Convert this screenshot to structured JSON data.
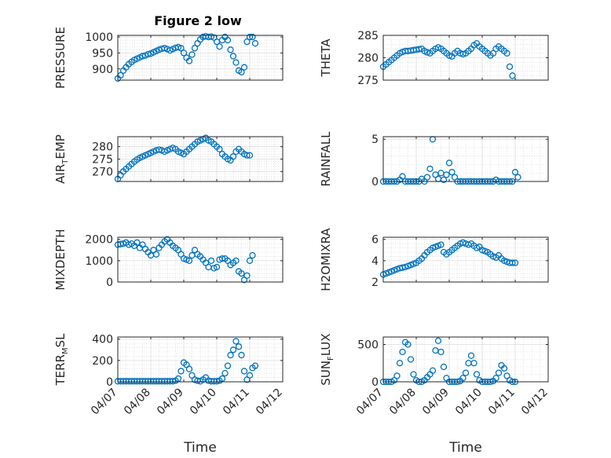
{
  "figure": {
    "title": "Figure 2 low",
    "marker_color": "#0072BD"
  },
  "chart_data": [
    {
      "type": "scatter",
      "id": "pressure",
      "title": "Figure 2 low",
      "ylabel": "PRESSURE",
      "ylabel_parts": [
        {
          "t": "PRESSURE"
        }
      ],
      "xlim": [
        "04/07",
        "04/12"
      ],
      "x_ticks": [
        "04/07",
        "04/08",
        "04/09",
        "04/10",
        "04/11",
        "04/12"
      ],
      "x_tick_labels_shown": false,
      "ylim": [
        865,
        1005
      ],
      "y_ticks": [
        900,
        950,
        1000
      ],
      "grid": true,
      "x": [
        "04/07 00:00",
        "04/07 02:00",
        "04/07 04:00",
        "04/07 06:00",
        "04/07 08:00",
        "04/07 10:00",
        "04/07 12:00",
        "04/07 14:00",
        "04/07 16:00",
        "04/07 18:00",
        "04/07 20:00",
        "04/07 22:00",
        "04/08 00:00",
        "04/08 02:00",
        "04/08 04:00",
        "04/08 06:00",
        "04/08 08:00",
        "04/08 10:00",
        "04/08 12:00",
        "04/08 14:00",
        "04/08 16:00",
        "04/08 18:00",
        "04/08 20:00",
        "04/08 22:00",
        "04/09 00:00",
        "04/09 02:00",
        "04/09 04:00",
        "04/09 06:00",
        "04/09 08:00",
        "04/09 10:00",
        "04/09 12:00",
        "04/09 14:00",
        "04/09 16:00",
        "04/09 18:00",
        "04/09 20:00",
        "04/09 22:00",
        "04/10 00:00",
        "04/10 02:00",
        "04/10 04:00",
        "04/10 06:00",
        "04/10 08:00",
        "04/10 10:00",
        "04/10 12:00",
        "04/10 14:00",
        "04/10 16:00",
        "04/10 18:00",
        "04/10 20:00",
        "04/10 22:00",
        "04/11 00:00",
        "04/11 02:00",
        "04/11 04:00"
      ],
      "y": [
        870,
        880,
        895,
        905,
        915,
        922,
        928,
        932,
        936,
        940,
        942,
        946,
        948,
        952,
        956,
        960,
        963,
        965,
        962,
        958,
        962,
        966,
        968,
        965,
        950,
        935,
        925,
        945,
        965,
        980,
        992,
        1000,
        1002,
        1000,
        1001,
        998,
        985,
        970,
        990,
        1000,
        990,
        960,
        940,
        920,
        895,
        890,
        905,
        985,
        1000,
        1000,
        980
      ]
    },
    {
      "type": "scatter",
      "id": "theta",
      "ylabel": "THETA",
      "ylabel_parts": [
        {
          "t": "THETA"
        }
      ],
      "xlim": [
        "04/07",
        "04/12"
      ],
      "x_ticks": [
        "04/07",
        "04/08",
        "04/09",
        "04/10",
        "04/11",
        "04/12"
      ],
      "x_tick_labels_shown": false,
      "ylim": [
        275,
        285
      ],
      "y_ticks": [
        275,
        280,
        285
      ],
      "grid": true,
      "x": [
        "04/07 00:00",
        "04/07 02:00",
        "04/07 04:00",
        "04/07 06:00",
        "04/07 08:00",
        "04/07 10:00",
        "04/07 12:00",
        "04/07 14:00",
        "04/07 16:00",
        "04/07 18:00",
        "04/07 20:00",
        "04/07 22:00",
        "04/08 00:00",
        "04/08 02:00",
        "04/08 04:00",
        "04/08 06:00",
        "04/08 08:00",
        "04/08 10:00",
        "04/08 12:00",
        "04/08 14:00",
        "04/08 16:00",
        "04/08 18:00",
        "04/08 20:00",
        "04/08 22:00",
        "04/09 00:00",
        "04/09 02:00",
        "04/09 04:00",
        "04/09 06:00",
        "04/09 08:00",
        "04/09 10:00",
        "04/09 12:00",
        "04/09 14:00",
        "04/09 16:00",
        "04/09 18:00",
        "04/09 20:00",
        "04/09 22:00",
        "04/10 00:00",
        "04/10 02:00",
        "04/10 04:00",
        "04/10 06:00",
        "04/10 08:00",
        "04/10 10:00",
        "04/10 12:00",
        "04/10 14:00",
        "04/10 16:00",
        "04/10 18:00",
        "04/10 20:00",
        "04/10 22:00"
      ],
      "y": [
        278,
        278.5,
        279,
        279.5,
        280,
        280.5,
        281,
        281.3,
        281.5,
        281.5,
        281.6,
        281.7,
        281.8,
        281.9,
        282,
        281.5,
        281.2,
        281,
        281.5,
        282,
        282.3,
        282,
        281.5,
        281,
        280.5,
        280.3,
        281,
        281.5,
        281,
        280.8,
        281,
        281.5,
        282,
        282.8,
        283.2,
        282.5,
        282,
        281.5,
        281,
        280.5,
        281,
        282,
        282.5,
        282,
        281.5,
        281,
        278,
        276
      ]
    },
    {
      "type": "scatter",
      "id": "air_temp",
      "ylabel": "AIR_TEMP",
      "ylabel_parts": [
        {
          "t": "AIR"
        },
        {
          "t": "T",
          "sub": true
        },
        {
          "t": "EMP"
        }
      ],
      "xlim": [
        "04/07",
        "04/12"
      ],
      "x_ticks": [
        "04/07",
        "04/08",
        "04/09",
        "04/10",
        "04/11",
        "04/12"
      ],
      "x_tick_labels_shown": false,
      "ylim": [
        266,
        284
      ],
      "y_ticks": [
        270,
        275,
        280
      ],
      "grid": true,
      "x": [
        "04/07 00:00",
        "04/07 02:00",
        "04/07 04:00",
        "04/07 06:00",
        "04/07 08:00",
        "04/07 10:00",
        "04/07 12:00",
        "04/07 14:00",
        "04/07 16:00",
        "04/07 18:00",
        "04/07 20:00",
        "04/07 22:00",
        "04/08 00:00",
        "04/08 02:00",
        "04/08 04:00",
        "04/08 06:00",
        "04/08 08:00",
        "04/08 10:00",
        "04/08 12:00",
        "04/08 14:00",
        "04/08 16:00",
        "04/08 18:00",
        "04/08 20:00",
        "04/08 22:00",
        "04/09 00:00",
        "04/09 02:00",
        "04/09 04:00",
        "04/09 06:00",
        "04/09 08:00",
        "04/09 10:00",
        "04/09 12:00",
        "04/09 14:00",
        "04/09 16:00",
        "04/09 18:00",
        "04/09 20:00",
        "04/09 22:00",
        "04/10 00:00",
        "04/10 02:00",
        "04/10 04:00",
        "04/10 06:00",
        "04/10 08:00",
        "04/10 10:00",
        "04/10 12:00",
        "04/10 14:00",
        "04/10 16:00",
        "04/10 18:00",
        "04/10 20:00",
        "04/10 22:00",
        "04/11 00:00"
      ],
      "y": [
        267,
        268.5,
        270,
        271,
        272,
        273,
        274,
        274.8,
        275.5,
        276,
        276.5,
        277,
        277.5,
        278,
        278.5,
        278.8,
        278.5,
        278,
        278.5,
        279,
        279.5,
        279,
        278,
        277.5,
        277,
        278,
        279,
        280,
        281,
        282,
        282.5,
        283,
        283.5,
        282.5,
        282,
        281,
        280,
        279,
        277,
        276,
        275,
        274.5,
        276,
        278,
        279,
        278,
        277,
        276.5,
        276.5
      ]
    },
    {
      "type": "scatter",
      "id": "rainfall",
      "ylabel": "RAINFALL",
      "ylabel_parts": [
        {
          "t": "RAINFALL"
        }
      ],
      "xlim": [
        "04/07",
        "04/12"
      ],
      "x_ticks": [
        "04/07",
        "04/08",
        "04/09",
        "04/10",
        "04/11",
        "04/12"
      ],
      "x_tick_labels_shown": false,
      "ylim": [
        0,
        5.3
      ],
      "y_ticks": [
        0,
        5
      ],
      "grid": true,
      "x": [
        "04/07 00:00",
        "04/07 02:00",
        "04/07 04:00",
        "04/07 06:00",
        "04/07 08:00",
        "04/07 10:00",
        "04/07 12:00",
        "04/07 14:00",
        "04/07 16:00",
        "04/07 18:00",
        "04/07 20:00",
        "04/07 22:00",
        "04/08 00:00",
        "04/08 02:00",
        "04/08 04:00",
        "04/08 06:00",
        "04/08 08:00",
        "04/08 10:00",
        "04/08 12:00",
        "04/08 14:00",
        "04/08 16:00",
        "04/08 18:00",
        "04/08 20:00",
        "04/08 22:00",
        "04/09 00:00",
        "04/09 02:00",
        "04/09 04:00",
        "04/09 06:00",
        "04/09 08:00",
        "04/09 10:00",
        "04/09 12:00",
        "04/09 14:00",
        "04/09 16:00",
        "04/09 18:00",
        "04/09 20:00",
        "04/09 22:00",
        "04/10 00:00",
        "04/10 02:00",
        "04/10 04:00",
        "04/10 06:00",
        "04/10 08:00",
        "04/10 10:00",
        "04/10 12:00",
        "04/10 14:00",
        "04/10 16:00",
        "04/10 18:00",
        "04/10 20:00",
        "04/10 22:00",
        "04/11 00:00",
        "04/11 02:00"
      ],
      "y": [
        0,
        0,
        0,
        0,
        0,
        0,
        0.2,
        0.6,
        0,
        0,
        0,
        0,
        0,
        0,
        0.3,
        0,
        0.5,
        1.5,
        5,
        0.8,
        0.3,
        1.0,
        0.2,
        0.8,
        2.2,
        1.1,
        0.5,
        0,
        0,
        0,
        0,
        0,
        0,
        0,
        0,
        0,
        0,
        0,
        0,
        0,
        0,
        0.2,
        0,
        0,
        0,
        0,
        0,
        0,
        1.1,
        0.5
      ]
    },
    {
      "type": "scatter",
      "id": "mixdepth",
      "ylabel": "MIXDEPTH",
      "ylabel_parts": [
        {
          "t": "MIXDEPTH"
        }
      ],
      "xlim": [
        "04/07",
        "04/12"
      ],
      "x_ticks": [
        "04/07",
        "04/08",
        "04/09",
        "04/10",
        "04/11",
        "04/12"
      ],
      "x_tick_labels_shown": false,
      "ylim": [
        0,
        2100
      ],
      "y_ticks": [
        0,
        1000,
        2000
      ],
      "grid": true,
      "x": [
        "04/07 00:00",
        "04/07 02:00",
        "04/07 04:00",
        "04/07 06:00",
        "04/07 08:00",
        "04/07 10:00",
        "04/07 12:00",
        "04/07 14:00",
        "04/07 16:00",
        "04/07 18:00",
        "04/07 20:00",
        "04/07 22:00",
        "04/08 00:00",
        "04/08 02:00",
        "04/08 04:00",
        "04/08 06:00",
        "04/08 08:00",
        "04/08 10:00",
        "04/08 12:00",
        "04/08 14:00",
        "04/08 16:00",
        "04/08 18:00",
        "04/08 20:00",
        "04/08 22:00",
        "04/09 00:00",
        "04/09 02:00",
        "04/09 04:00",
        "04/09 06:00",
        "04/09 08:00",
        "04/09 10:00",
        "04/09 12:00",
        "04/09 14:00",
        "04/09 16:00",
        "04/09 18:00",
        "04/09 20:00",
        "04/09 22:00",
        "04/10 00:00",
        "04/10 02:00",
        "04/10 04:00",
        "04/10 06:00",
        "04/10 08:00",
        "04/10 10:00",
        "04/10 12:00",
        "04/10 14:00",
        "04/10 16:00",
        "04/10 18:00",
        "04/10 20:00",
        "04/10 22:00",
        "04/11 00:00",
        "04/11 02:00"
      ],
      "y": [
        1750,
        1780,
        1800,
        1850,
        1750,
        1800,
        1700,
        1850,
        1600,
        1750,
        1550,
        1400,
        1250,
        1500,
        1300,
        1600,
        1750,
        1900,
        2000,
        1850,
        1700,
        1600,
        1500,
        1300,
        1100,
        1050,
        1000,
        1250,
        1500,
        1300,
        1200,
        1050,
        900,
        700,
        1000,
        650,
        700,
        1050,
        1100,
        1100,
        1000,
        800,
        900,
        1000,
        500,
        400,
        100,
        300,
        1000,
        1250
      ]
    },
    {
      "type": "scatter",
      "id": "h2omixra",
      "ylabel": "H2OMIXRA",
      "ylabel_parts": [
        {
          "t": "H2OMIXRA"
        }
      ],
      "xlim": [
        "04/07",
        "04/12"
      ],
      "x_ticks": [
        "04/07",
        "04/08",
        "04/09",
        "04/10",
        "04/11",
        "04/12"
      ],
      "x_tick_labels_shown": false,
      "ylim": [
        2,
        6.2
      ],
      "y_ticks": [
        2,
        4,
        6
      ],
      "grid": true,
      "x": [
        "04/07 00:00",
        "04/07 02:00",
        "04/07 04:00",
        "04/07 06:00",
        "04/07 08:00",
        "04/07 10:00",
        "04/07 12:00",
        "04/07 14:00",
        "04/07 16:00",
        "04/07 18:00",
        "04/07 20:00",
        "04/07 22:00",
        "04/08 00:00",
        "04/08 02:00",
        "04/08 04:00",
        "04/08 06:00",
        "04/08 08:00",
        "04/08 10:00",
        "04/08 12:00",
        "04/08 14:00",
        "04/08 16:00",
        "04/08 18:00",
        "04/08 20:00",
        "04/08 22:00",
        "04/09 00:00",
        "04/09 02:00",
        "04/09 04:00",
        "04/09 06:00",
        "04/09 08:00",
        "04/09 10:00",
        "04/09 12:00",
        "04/09 14:00",
        "04/09 16:00",
        "04/09 18:00",
        "04/09 20:00",
        "04/09 22:00",
        "04/10 00:00",
        "04/10 02:00",
        "04/10 04:00",
        "04/10 06:00",
        "04/10 08:00",
        "04/10 10:00",
        "04/10 12:00",
        "04/10 14:00",
        "04/10 16:00",
        "04/10 18:00",
        "04/10 20:00",
        "04/10 22:00",
        "04/11 00:00"
      ],
      "y": [
        2.7,
        2.8,
        2.9,
        3.0,
        3.1,
        3.2,
        3.3,
        3.35,
        3.4,
        3.5,
        3.6,
        3.7,
        3.8,
        4.0,
        4.2,
        4.5,
        4.8,
        5.0,
        5.2,
        5.3,
        5.4,
        5.5,
        4.8,
        4.6,
        4.8,
        5.0,
        5.2,
        5.4,
        5.6,
        5.7,
        5.6,
        5.5,
        5.6,
        5.4,
        5.2,
        5.3,
        5.0,
        4.9,
        4.8,
        4.6,
        4.4,
        4.3,
        4.5,
        4.2,
        4.0,
        3.9,
        3.8,
        3.8,
        3.8
      ]
    },
    {
      "type": "scatter",
      "id": "terr_msl",
      "ylabel": "TERR_MSL",
      "ylabel_parts": [
        {
          "t": "TERR"
        },
        {
          "t": "M",
          "sub": true
        },
        {
          "t": "SL"
        }
      ],
      "xlim": [
        "04/07",
        "04/12"
      ],
      "x_ticks": [
        "04/07",
        "04/08",
        "04/09",
        "04/10",
        "04/11",
        "04/12"
      ],
      "x_tick_labels_shown": true,
      "ylim": [
        0,
        420
      ],
      "y_ticks": [
        0,
        200,
        400
      ],
      "grid": true,
      "xlabel": "Time",
      "x": [
        "04/07 00:00",
        "04/07 02:00",
        "04/07 04:00",
        "04/07 06:00",
        "04/07 08:00",
        "04/07 10:00",
        "04/07 12:00",
        "04/07 14:00",
        "04/07 16:00",
        "04/07 18:00",
        "04/07 20:00",
        "04/07 22:00",
        "04/08 00:00",
        "04/08 02:00",
        "04/08 04:00",
        "04/08 06:00",
        "04/08 08:00",
        "04/08 10:00",
        "04/08 12:00",
        "04/08 14:00",
        "04/08 16:00",
        "04/08 18:00",
        "04/08 20:00",
        "04/08 22:00",
        "04/09 00:00",
        "04/09 02:00",
        "04/09 04:00",
        "04/09 06:00",
        "04/09 08:00",
        "04/09 10:00",
        "04/09 12:00",
        "04/09 14:00",
        "04/09 16:00",
        "04/09 18:00",
        "04/09 20:00",
        "04/09 22:00",
        "04/10 00:00",
        "04/10 02:00",
        "04/10 04:00",
        "04/10 06:00",
        "04/10 08:00",
        "04/10 10:00",
        "04/10 12:00",
        "04/10 14:00",
        "04/10 16:00",
        "04/10 18:00",
        "04/10 20:00",
        "04/10 22:00",
        "04/11 00:00",
        "04/11 02:00",
        "04/11 04:00"
      ],
      "y": [
        5,
        5,
        5,
        5,
        5,
        5,
        5,
        5,
        5,
        5,
        5,
        5,
        5,
        5,
        5,
        5,
        5,
        5,
        5,
        5,
        5,
        10,
        30,
        100,
        180,
        160,
        120,
        60,
        20,
        10,
        5,
        20,
        40,
        10,
        5,
        5,
        5,
        10,
        30,
        80,
        150,
        250,
        300,
        380,
        330,
        250,
        100,
        20,
        60,
        130,
        150
      ]
    },
    {
      "type": "scatter",
      "id": "sun_flux",
      "ylabel": "SUN_FLUX",
      "ylabel_parts": [
        {
          "t": "SUN"
        },
        {
          "t": "F",
          "sub": true
        },
        {
          "t": "LUX"
        }
      ],
      "xlim": [
        "04/07",
        "04/12"
      ],
      "x_ticks": [
        "04/07",
        "04/08",
        "04/09",
        "04/10",
        "04/11",
        "04/12"
      ],
      "x_tick_labels_shown": true,
      "ylim": [
        0,
        600
      ],
      "y_ticks": [
        0,
        500
      ],
      "grid": true,
      "xlabel": "Time",
      "x": [
        "04/07 00:00",
        "04/07 02:00",
        "04/07 04:00",
        "04/07 06:00",
        "04/07 08:00",
        "04/07 10:00",
        "04/07 12:00",
        "04/07 14:00",
        "04/07 16:00",
        "04/07 18:00",
        "04/07 20:00",
        "04/07 22:00",
        "04/08 00:00",
        "04/08 02:00",
        "04/08 04:00",
        "04/08 06:00",
        "04/08 08:00",
        "04/08 10:00",
        "04/08 12:00",
        "04/08 14:00",
        "04/08 16:00",
        "04/08 18:00",
        "04/08 20:00",
        "04/08 22:00",
        "04/09 00:00",
        "04/09 02:00",
        "04/09 04:00",
        "04/09 06:00",
        "04/09 08:00",
        "04/09 10:00",
        "04/09 12:00",
        "04/09 14:00",
        "04/09 16:00",
        "04/09 18:00",
        "04/09 20:00",
        "04/09 22:00",
        "04/10 00:00",
        "04/10 02:00",
        "04/10 04:00",
        "04/10 06:00",
        "04/10 08:00",
        "04/10 10:00",
        "04/10 12:00",
        "04/10 14:00",
        "04/10 16:00",
        "04/10 18:00",
        "04/10 20:00",
        "04/10 22:00",
        "04/11 00:00"
      ],
      "y": [
        0,
        0,
        0,
        0,
        20,
        80,
        250,
        400,
        530,
        500,
        300,
        100,
        20,
        0,
        0,
        20,
        60,
        100,
        150,
        420,
        550,
        400,
        200,
        50,
        0,
        0,
        0,
        0,
        10,
        50,
        120,
        250,
        350,
        250,
        100,
        20,
        0,
        0,
        0,
        0,
        10,
        50,
        120,
        220,
        180,
        80,
        20,
        0,
        0
      ]
    }
  ]
}
